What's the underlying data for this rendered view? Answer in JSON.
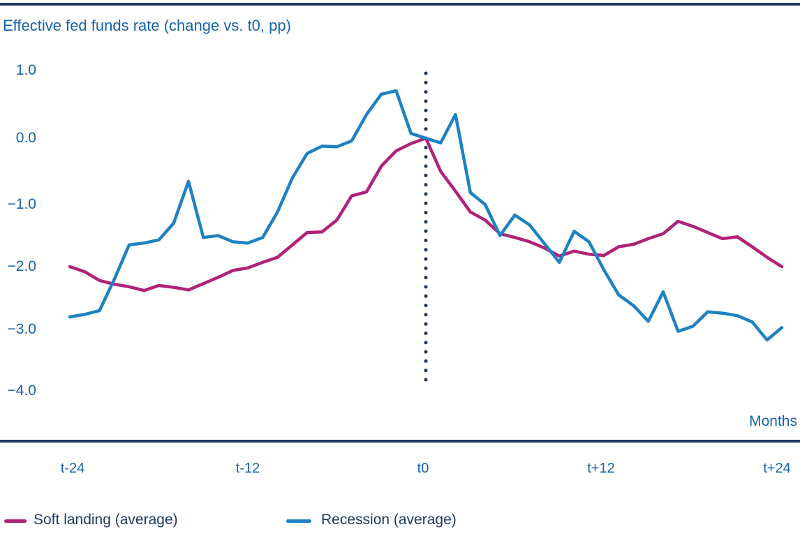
{
  "title": "Effective fed funds rate (change vs. t0, pp)",
  "axis": {
    "y_ticks": [
      "1.0",
      "0.0",
      "−1.0",
      "−2.0",
      "−3.0",
      "−4.0"
    ],
    "x_ticks": [
      "t-24",
      "t-12",
      "t0",
      "t+12",
      "t+24"
    ],
    "x_axis_label": "Months"
  },
  "legend": [
    {
      "label": "Soft landing (average)",
      "color": "#B02277"
    },
    {
      "label": "Recession (average)",
      "color": "#1E81C2"
    }
  ],
  "colors": {
    "rule_navy": "#1F3864",
    "text_blue": "#1763AC",
    "soft_landing_line": "#B02277",
    "recession_line": "#1E81C2",
    "t0_marker": "#1F3864"
  },
  "chart_data": {
    "type": "line",
    "title": "Effective fed funds rate (change vs. t0, pp)",
    "xlabel": "Months",
    "ylabel": "Effective fed funds rate (change vs. t0, pp)",
    "xlim": [
      -24,
      24
    ],
    "ylim": [
      -4.0,
      1.0
    ],
    "grid": false,
    "legend_position": "bottom",
    "annotations": [
      {
        "type": "vertical-dotted-line",
        "x": 0
      }
    ],
    "x": [
      -24,
      -23,
      -22,
      -21,
      -20,
      -19,
      -18,
      -17,
      -16,
      -15,
      -14,
      -13,
      -12,
      -11,
      -10,
      -9,
      -8,
      -7,
      -6,
      -5,
      -4,
      -3,
      -2,
      -1,
      0,
      1,
      2,
      3,
      4,
      5,
      6,
      7,
      8,
      9,
      10,
      11,
      12,
      13,
      14,
      15,
      16,
      17,
      18,
      19,
      20,
      21,
      22,
      23,
      24
    ],
    "series": [
      {
        "name": "Soft landing (average)",
        "color": "#B02277",
        "values": [
          -2.0,
          -2.08,
          -2.22,
          -2.28,
          -2.32,
          -2.38,
          -2.3,
          -2.33,
          -2.37,
          -2.27,
          -2.17,
          -2.06,
          -2.02,
          -1.93,
          -1.85,
          -1.65,
          -1.45,
          -1.44,
          -1.25,
          -0.87,
          -0.81,
          -0.42,
          -0.19,
          -0.08,
          0.0,
          -0.5,
          -0.8,
          -1.12,
          -1.25,
          -1.47,
          -1.53,
          -1.6,
          -1.7,
          -1.83,
          -1.75,
          -1.8,
          -1.82,
          -1.68,
          -1.64,
          -1.55,
          -1.47,
          -1.27,
          -1.35,
          -1.45,
          -1.55,
          -1.52,
          -1.68,
          -1.85,
          -2.0
        ]
      },
      {
        "name": "Recession (average)",
        "color": "#1E81C2",
        "values": [
          -2.8,
          -2.76,
          -2.7,
          -2.2,
          -1.65,
          -1.62,
          -1.57,
          -1.3,
          -0.65,
          -1.53,
          -1.5,
          -1.6,
          -1.62,
          -1.53,
          -1.12,
          -0.6,
          -0.23,
          -0.12,
          -0.13,
          -0.04,
          0.35,
          0.65,
          0.7,
          0.07,
          0.0,
          -0.07,
          0.35,
          -0.82,
          -1.0,
          -1.5,
          -1.17,
          -1.33,
          -1.63,
          -1.93,
          -1.43,
          -1.6,
          -2.05,
          -2.45,
          -2.62,
          -2.87,
          -2.4,
          -3.03,
          -2.95,
          -2.72,
          -2.74,
          -2.78,
          -2.88,
          -3.17,
          -2.97
        ]
      }
    ]
  }
}
